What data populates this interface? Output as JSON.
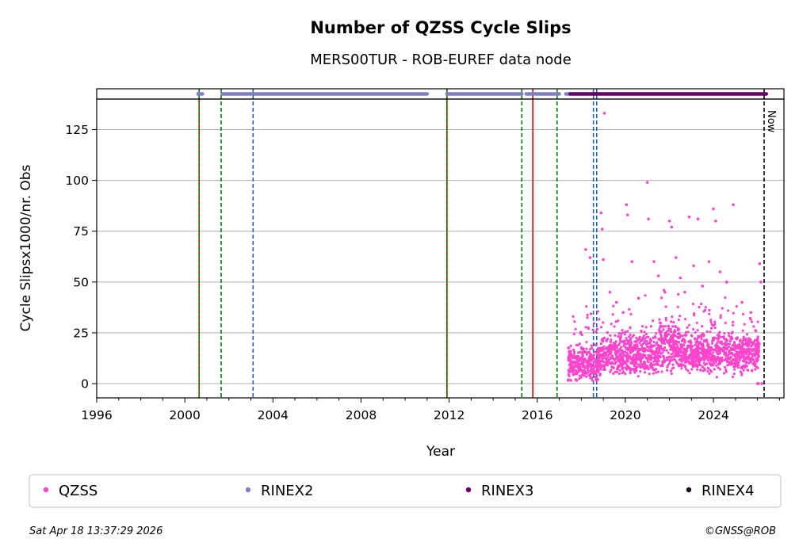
{
  "chart_data": {
    "type": "scatter",
    "title": "Number of QZSS Cycle Slips",
    "subtitle": "MERS00TUR - ROB-EUREF data node",
    "xlabel": "Year",
    "ylabel": "Cycle Slipsx1000/nr. Obs",
    "xlim": [
      1996.0,
      2027.2
    ],
    "ylim": [
      -7,
      140
    ],
    "strip_ylim": [
      140,
      145
    ],
    "x_ticks": [
      1996,
      2000,
      2004,
      2008,
      2012,
      2016,
      2020,
      2024
    ],
    "x_tick_labels": [
      "1996",
      "2000",
      "2004",
      "2008",
      "2012",
      "2016",
      "2020",
      "2024"
    ],
    "y_ticks": [
      0,
      25,
      50,
      75,
      100,
      125
    ],
    "y_tick_labels": [
      "0",
      "25",
      "50",
      "75",
      "100",
      "125"
    ],
    "grid": "horizontal",
    "now_label": "Now",
    "now_year": 2026.3,
    "vertical_lines": [
      {
        "x": 2000.65,
        "color": "#cc0000",
        "style": "solid"
      },
      {
        "x": 2000.65,
        "color": "#008000",
        "style": "dashed"
      },
      {
        "x": 2001.65,
        "color": "#008000",
        "style": "dashed"
      },
      {
        "x": 2003.1,
        "color": "#1f5fa8",
        "style": "dashed"
      },
      {
        "x": 2011.9,
        "color": "#cc0000",
        "style": "solid"
      },
      {
        "x": 2011.9,
        "color": "#008000",
        "style": "dashed"
      },
      {
        "x": 2015.3,
        "color": "#008000",
        "style": "dashed"
      },
      {
        "x": 2015.8,
        "color": "#cc0000",
        "style": "solid"
      },
      {
        "x": 2016.9,
        "color": "#008000",
        "style": "dashed"
      },
      {
        "x": 2018.55,
        "color": "#1f5fa8",
        "style": "dashed"
      },
      {
        "x": 2018.7,
        "color": "#1f5fa8",
        "style": "dashed"
      }
    ],
    "rinex_strips": [
      {
        "name": "RINEX2",
        "color": "#8080c0",
        "segments": [
          [
            2000.6,
            2000.8
          ],
          [
            2001.7,
            2011.0
          ],
          [
            2011.9,
            2015.3
          ],
          [
            2015.5,
            2017.0
          ],
          [
            2017.3,
            2017.5
          ]
        ]
      },
      {
        "name": "RINEX3",
        "color": "#660066",
        "segments": [
          [
            2017.5,
            2026.4
          ]
        ]
      },
      {
        "name": "RINEX4",
        "color": "#1a0022",
        "segments": []
      }
    ],
    "series": [
      {
        "name": "QZSS",
        "color": "#ff44cc",
        "baseline_points": [
          {
            "from": 2017.4,
            "to": 2018.9,
            "median": 10,
            "spread": 6
          },
          {
            "from": 2018.9,
            "to": 2021.5,
            "median": 14,
            "spread": 7
          },
          {
            "from": 2021.5,
            "to": 2022.5,
            "median": 19,
            "spread": 9
          },
          {
            "from": 2022.5,
            "to": 2026.1,
            "median": 15,
            "spread": 7
          }
        ],
        "outliers": [
          [
            2018.2,
            66
          ],
          [
            2018.4,
            62
          ],
          [
            2018.9,
            84
          ],
          [
            2018.95,
            76
          ],
          [
            2019.0,
            61
          ],
          [
            2019.05,
            133
          ],
          [
            2019.3,
            45
          ],
          [
            2019.6,
            40
          ],
          [
            2019.9,
            35
          ],
          [
            2020.05,
            88
          ],
          [
            2020.1,
            83
          ],
          [
            2020.3,
            60
          ],
          [
            2020.6,
            42
          ],
          [
            2021.0,
            99
          ],
          [
            2021.05,
            81
          ],
          [
            2021.3,
            60
          ],
          [
            2021.5,
            53
          ],
          [
            2021.8,
            45
          ],
          [
            2022.0,
            80
          ],
          [
            2022.1,
            77
          ],
          [
            2022.3,
            62
          ],
          [
            2022.5,
            52
          ],
          [
            2022.7,
            45
          ],
          [
            2022.9,
            82
          ],
          [
            2023.1,
            58
          ],
          [
            2023.3,
            81
          ],
          [
            2023.5,
            48
          ],
          [
            2023.8,
            60
          ],
          [
            2024.0,
            86
          ],
          [
            2024.1,
            80
          ],
          [
            2024.3,
            55
          ],
          [
            2024.6,
            50
          ],
          [
            2024.9,
            88
          ],
          [
            2025.3,
            40
          ],
          [
            2025.7,
            35
          ],
          [
            2026.1,
            59
          ],
          [
            2026.15,
            50
          ],
          [
            2026.0,
            0
          ],
          [
            2026.05,
            0
          ],
          [
            2026.2,
            0
          ]
        ]
      }
    ],
    "legend": [
      {
        "label": "QZSS",
        "color": "#ff44cc"
      },
      {
        "label": "RINEX2",
        "color": "#8080c0"
      },
      {
        "label": "RINEX3",
        "color": "#660066"
      },
      {
        "label": "RINEX4",
        "color": "#1a0022"
      }
    ],
    "legend_position": "bottom",
    "footer_left": "Sat Apr 18 13:37:29 2026",
    "footer_right": "©GNSS@ROB"
  }
}
